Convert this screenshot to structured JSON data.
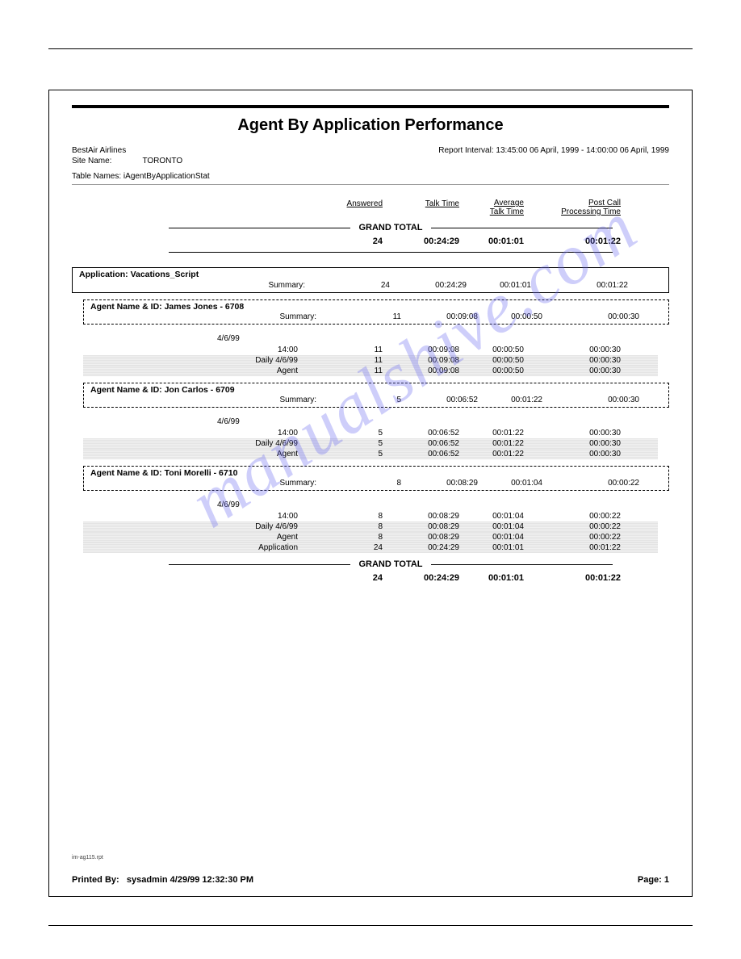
{
  "outer": {},
  "report": {
    "title": "Agent By Application Performance",
    "company": "BestAir Airlines",
    "site_label": "Site Name:",
    "site_value": "TORONTO",
    "interval": "Report Interval: 13:45:00 06 April, 1999 - 14:00:00 06 April, 1999",
    "table_names_label": "Table Names:",
    "table_names_value": "iAgentByApplicationStat"
  },
  "columns": {
    "answered": "Answered",
    "talk": "Talk Time",
    "avg1": "Average",
    "avg2": "Talk Time",
    "post1": "Post Call",
    "post2": "Processing Time"
  },
  "grand_total_label": "GRAND TOTAL",
  "grand_total": {
    "a": "24",
    "b": "00:24:29",
    "c": "00:01:01",
    "d": "00:01:22"
  },
  "application": {
    "label": "Application: Vacations_Script",
    "summary_label": "Summary:",
    "summary": {
      "a": "24",
      "b": "00:24:29",
      "c": "00:01:01",
      "d": "00:01:22"
    }
  },
  "agents": [
    {
      "label": "Agent Name & ID: James Jones - 6708",
      "summary_label": "Summary:",
      "summary": {
        "a": "11",
        "b": "00:09:08",
        "c": "00:00:50",
        "d": "00:00:30"
      },
      "date": "4/6/99",
      "rows": [
        {
          "lbl": "14:00",
          "a": "11",
          "b": "00:09:08",
          "c": "00:00:50",
          "d": "00:00:30",
          "shaded": false
        },
        {
          "lbl": "Daily 4/6/99",
          "a": "11",
          "b": "00:09:08",
          "c": "00:00:50",
          "d": "00:00:30",
          "shaded": true
        },
        {
          "lbl": "Agent",
          "a": "11",
          "b": "00:09:08",
          "c": "00:00:50",
          "d": "00:00:30",
          "shaded": true
        }
      ]
    },
    {
      "label": "Agent Name & ID: Jon Carlos - 6709",
      "summary_label": "Summary:",
      "summary": {
        "a": "5",
        "b": "00:06:52",
        "c": "00:01:22",
        "d": "00:00:30"
      },
      "date": "4/6/99",
      "rows": [
        {
          "lbl": "14:00",
          "a": "5",
          "b": "00:06:52",
          "c": "00:01:22",
          "d": "00:00:30",
          "shaded": false
        },
        {
          "lbl": "Daily 4/6/99",
          "a": "5",
          "b": "00:06:52",
          "c": "00:01:22",
          "d": "00:00:30",
          "shaded": true
        },
        {
          "lbl": "Agent",
          "a": "5",
          "b": "00:06:52",
          "c": "00:01:22",
          "d": "00:00:30",
          "shaded": true
        }
      ]
    },
    {
      "label": "Agent Name & ID: Toni Morelli - 6710",
      "summary_label": "Summary:",
      "summary": {
        "a": "8",
        "b": "00:08:29",
        "c": "00:01:04",
        "d": "00:00:22"
      },
      "date": "4/6/99",
      "rows": [
        {
          "lbl": "14:00",
          "a": "8",
          "b": "00:08:29",
          "c": "00:01:04",
          "d": "00:00:22",
          "shaded": false
        },
        {
          "lbl": "Daily 4/6/99",
          "a": "8",
          "b": "00:08:29",
          "c": "00:01:04",
          "d": "00:00:22",
          "shaded": true
        },
        {
          "lbl": "Agent",
          "a": "8",
          "b": "00:08:29",
          "c": "00:01:04",
          "d": "00:00:22",
          "shaded": true
        },
        {
          "lbl": "Application",
          "a": "24",
          "b": "00:24:29",
          "c": "00:01:01",
          "d": "00:01:22",
          "shaded": true
        }
      ]
    }
  ],
  "grand_total_bottom": {
    "a": "24",
    "b": "00:24:29",
    "c": "00:01:01",
    "d": "00:01:22"
  },
  "watermark": "manualshive.com",
  "tiny_note": "im-ag115.rpt",
  "footer": {
    "printed_label": "Printed By:",
    "printed_value": "sysadmin 4/29/99 12:32:30 PM",
    "page_label": "Page: 1"
  },
  "styles": {
    "title_fontsize": 20,
    "body_fontsize": 11,
    "watermark_color": "#6a6af2",
    "shaded_bg": "#e8e8e8",
    "border_color": "#000000"
  }
}
